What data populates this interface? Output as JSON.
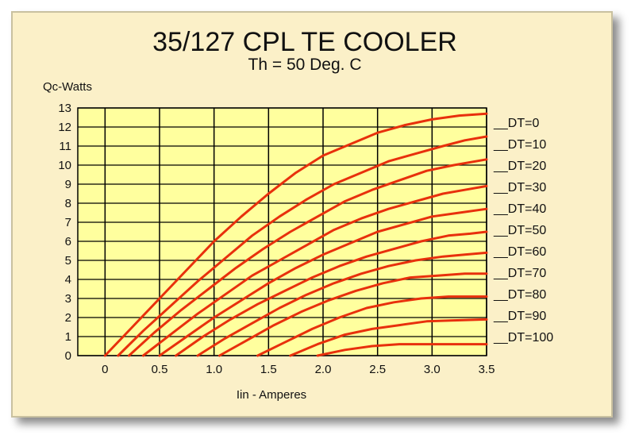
{
  "chart_data": {
    "type": "line",
    "title": "35/127 CPL TE COOLER",
    "subtitle": "Th = 50 Deg. C",
    "xlabel": "Iin - Amperes",
    "ylabel": "Qc-Watts",
    "xlim": [
      -0.25,
      3.5
    ],
    "ylim": [
      0,
      13
    ],
    "xticks": [
      "0",
      "0.5",
      "1.0",
      "1.5",
      "2.0",
      "2.5",
      "3.0",
      "3.5"
    ],
    "yticks": [
      "0",
      "1",
      "2",
      "3",
      "4",
      "5",
      "6",
      "7",
      "8",
      "9",
      "10",
      "11",
      "12",
      "13"
    ],
    "grid": true,
    "legend_position": "right",
    "line_color": "#e8300c",
    "plot_background": "#ffff9e",
    "series": [
      {
        "name": "__DT=0",
        "x": [
          0.0,
          0.25,
          0.5,
          0.75,
          1.0,
          1.25,
          1.5,
          1.75,
          2.0,
          2.25,
          2.5,
          2.75,
          3.0,
          3.25,
          3.5
        ],
        "y": [
          0,
          1.5,
          3.0,
          4.5,
          6.0,
          7.3,
          8.5,
          9.6,
          10.5,
          11.1,
          11.7,
          12.1,
          12.4,
          12.6,
          12.7
        ]
      },
      {
        "name": "__DT=10",
        "x": [
          0.12,
          0.35,
          0.6,
          0.85,
          1.1,
          1.35,
          1.6,
          1.85,
          2.1,
          2.35,
          2.6,
          2.85,
          3.1,
          3.3,
          3.5
        ],
        "y": [
          0,
          1.3,
          2.6,
          3.9,
          5.1,
          6.3,
          7.3,
          8.2,
          9.0,
          9.6,
          10.2,
          10.6,
          11.0,
          11.3,
          11.5
        ]
      },
      {
        "name": "__DT=20",
        "x": [
          0.22,
          0.45,
          0.7,
          0.95,
          1.2,
          1.45,
          1.7,
          1.95,
          2.2,
          2.45,
          2.7,
          2.95,
          3.2,
          3.5
        ],
        "y": [
          0,
          1.2,
          2.4,
          3.5,
          4.6,
          5.6,
          6.5,
          7.3,
          8.1,
          8.7,
          9.2,
          9.7,
          10.0,
          10.3
        ]
      },
      {
        "name": "__DT=30",
        "x": [
          0.35,
          0.6,
          0.85,
          1.1,
          1.35,
          1.6,
          1.85,
          2.1,
          2.35,
          2.6,
          2.85,
          3.1,
          3.3,
          3.5
        ],
        "y": [
          0,
          1.1,
          2.2,
          3.2,
          4.2,
          5.0,
          5.8,
          6.6,
          7.2,
          7.7,
          8.1,
          8.5,
          8.7,
          8.9
        ]
      },
      {
        "name": "__DT=40",
        "x": [
          0.5,
          0.75,
          1.0,
          1.25,
          1.5,
          1.75,
          2.0,
          2.25,
          2.5,
          2.75,
          3.0,
          3.25,
          3.5
        ],
        "y": [
          0,
          1.0,
          2.0,
          2.9,
          3.8,
          4.6,
          5.3,
          5.9,
          6.5,
          6.9,
          7.3,
          7.5,
          7.7
        ]
      },
      {
        "name": "__DT=50",
        "x": [
          0.65,
          0.9,
          1.15,
          1.4,
          1.65,
          1.9,
          2.15,
          2.4,
          2.65,
          2.9,
          3.15,
          3.35,
          3.5
        ],
        "y": [
          0,
          1.0,
          1.9,
          2.7,
          3.4,
          4.1,
          4.7,
          5.2,
          5.6,
          6.0,
          6.3,
          6.4,
          6.5
        ]
      },
      {
        "name": "__DT=60",
        "x": [
          0.85,
          1.1,
          1.35,
          1.6,
          1.85,
          2.1,
          2.35,
          2.6,
          2.85,
          3.1,
          3.3,
          3.5
        ],
        "y": [
          0,
          0.9,
          1.7,
          2.5,
          3.2,
          3.8,
          4.3,
          4.7,
          5.0,
          5.2,
          5.3,
          5.4
        ]
      },
      {
        "name": "__DT=70",
        "x": [
          1.05,
          1.3,
          1.55,
          1.8,
          2.05,
          2.3,
          2.55,
          2.8,
          3.05,
          3.3,
          3.5
        ],
        "y": [
          0,
          0.8,
          1.6,
          2.3,
          2.9,
          3.4,
          3.8,
          4.1,
          4.2,
          4.3,
          4.3
        ]
      },
      {
        "name": "__DT=80",
        "x": [
          1.4,
          1.65,
          1.9,
          2.15,
          2.4,
          2.65,
          2.9,
          3.15,
          3.35,
          3.5
        ],
        "y": [
          0,
          0.7,
          1.4,
          2.0,
          2.5,
          2.8,
          3.0,
          3.1,
          3.1,
          3.1
        ]
      },
      {
        "name": "__DT=90",
        "x": [
          1.7,
          1.95,
          2.2,
          2.45,
          2.7,
          2.95,
          3.2,
          3.5
        ],
        "y": [
          0,
          0.6,
          1.1,
          1.4,
          1.6,
          1.8,
          1.85,
          1.9
        ]
      },
      {
        "name": "__DT=100",
        "x": [
          1.95,
          2.2,
          2.45,
          2.7,
          2.95,
          3.2,
          3.5
        ],
        "y": [
          0,
          0.3,
          0.5,
          0.6,
          0.6,
          0.6,
          0.6
        ]
      }
    ]
  }
}
